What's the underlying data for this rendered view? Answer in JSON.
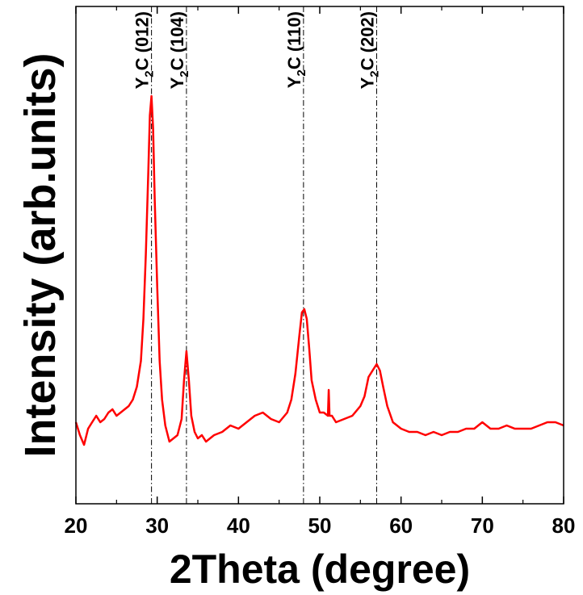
{
  "chart_data": {
    "type": "line",
    "xlabel": "2Theta (degree)",
    "ylabel": "Intensity (arb.units)",
    "xlim": [
      20,
      80
    ],
    "x_ticks": [
      "20",
      "30",
      "40",
      "50",
      "60",
      "70",
      "80"
    ],
    "y_ticks_shown": false,
    "grid": false,
    "line_color": "#ff0000",
    "reference_line_color": "#000000",
    "reference_lines": [
      {
        "x": 29.3,
        "label_main": "Y",
        "label_sub": "2",
        "label_rest": "C (012)"
      },
      {
        "x": 33.6,
        "label_main": "Y",
        "label_sub": "2",
        "label_rest": "C (104)"
      },
      {
        "x": 48.0,
        "label_main": "Y",
        "label_sub": "2",
        "label_rest": "C (110)"
      },
      {
        "x": 57.0,
        "label_main": "Y",
        "label_sub": "2",
        "label_rest": "C (202)"
      }
    ],
    "series": [
      {
        "x": [
          20,
          20.5,
          21,
          21.5,
          22,
          22.5,
          23,
          23.5,
          24,
          24.5,
          25,
          25.5,
          26,
          26.5,
          27,
          27.5,
          28,
          28.3,
          28.6,
          28.9,
          29.1,
          29.3,
          29.5,
          29.7,
          30,
          30.3,
          30.6,
          31,
          31.5,
          32,
          32.5,
          33,
          33.3,
          33.6,
          33.9,
          34.2,
          34.6,
          35,
          35.5,
          36,
          37,
          38,
          39,
          40,
          41,
          42,
          43,
          44,
          45,
          46,
          46.5,
          47,
          47.5,
          47.8,
          48.1,
          48.4,
          48.7,
          49,
          49.5,
          50,
          50.5,
          51,
          51.1,
          51.2,
          51.5,
          52,
          53,
          54,
          55,
          55.5,
          56,
          56.5,
          57,
          57.4,
          57.8,
          58.3,
          59,
          60,
          61,
          62,
          63,
          64,
          65,
          66,
          67,
          68,
          69,
          70,
          71,
          72,
          73,
          74,
          75,
          76,
          77,
          78,
          79,
          80
        ],
        "y": [
          13,
          9,
          6,
          11,
          13,
          15,
          13,
          14,
          16,
          17,
          15,
          16,
          17,
          18,
          20,
          24,
          32,
          45,
          65,
          90,
          108,
          114,
          104,
          82,
          55,
          32,
          20,
          12,
          7,
          8,
          9,
          14,
          26,
          35,
          26,
          15,
          10,
          8,
          9,
          7,
          9,
          10,
          12,
          11,
          13,
          15,
          16,
          14,
          13,
          16,
          20,
          28,
          40,
          47,
          48,
          45,
          36,
          26,
          20,
          16,
          16,
          15,
          23,
          15,
          15,
          13,
          14,
          15,
          18,
          21,
          27,
          29,
          31,
          29,
          24,
          18,
          13,
          11,
          10,
          10,
          9,
          10,
          9,
          10,
          10,
          11,
          11,
          13,
          11,
          11,
          12,
          11,
          11,
          11,
          12,
          13,
          13,
          12
        ]
      }
    ]
  }
}
